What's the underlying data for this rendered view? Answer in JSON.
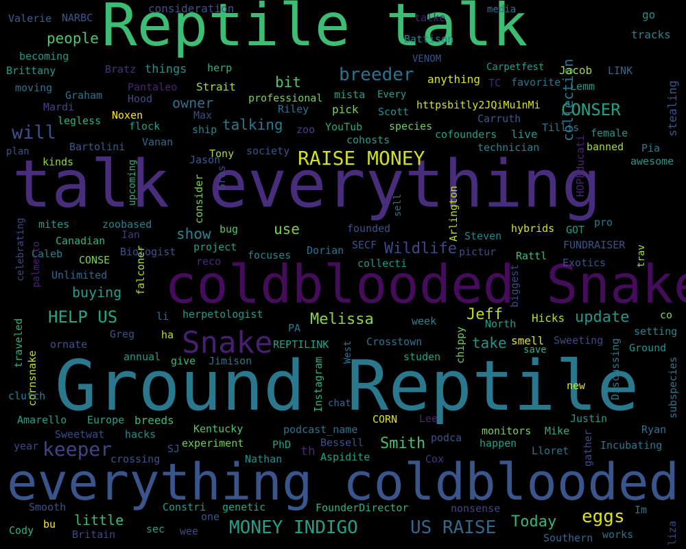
{
  "background": "#000000",
  "words": [
    {
      "text": "Reptile talk",
      "color": "#3dbc74"
    },
    {
      "text": "talk everything",
      "color": "#472d7b"
    },
    {
      "text": "coldblooded Snake",
      "color": "#440c5a"
    },
    {
      "text": "Ground Reptile",
      "color": "#29788e"
    },
    {
      "text": "everything coldblooded",
      "color": "#3a548c"
    },
    {
      "text": "Snake",
      "color": "#481f70"
    },
    {
      "text": "RAISE MONEY",
      "color": "#d0e11c"
    },
    {
      "text": "breeder",
      "color": "#2c728e"
    },
    {
      "text": "CONSER",
      "color": "#20a486"
    },
    {
      "text": "HELP US",
      "color": "#22a884"
    },
    {
      "text": "Wildlife",
      "color": "#3e4989"
    },
    {
      "text": "update",
      "color": "#1f988b"
    },
    {
      "text": "Melissa",
      "color": "#8bd646"
    },
    {
      "text": "Jeff",
      "color": "#bddf26"
    },
    {
      "text": "keeper",
      "color": "#414487"
    },
    {
      "text": "Smith",
      "color": "#4ac16d"
    },
    {
      "text": "eggs",
      "color": "#dde318"
    },
    {
      "text": "Today",
      "color": "#35b779"
    },
    {
      "text": "MONEY INDIGO",
      "color": "#1fa187"
    },
    {
      "text": "US RAISE",
      "color": "#31688e"
    },
    {
      "text": "little",
      "color": "#3dbc74"
    },
    {
      "text": "people",
      "color": "#54c568"
    },
    {
      "text": "will",
      "color": "#3b528b"
    },
    {
      "text": "talking",
      "color": "#2a788e"
    },
    {
      "text": "owner",
      "color": "#2d708e"
    },
    {
      "text": "bit",
      "color": "#54c568"
    },
    {
      "text": "show",
      "color": "#25848e"
    },
    {
      "text": "use",
      "color": "#7ad151"
    },
    {
      "text": "buying",
      "color": "#1f9e89"
    },
    {
      "text": "take",
      "color": "#1f968b"
    },
    {
      "text": "collection",
      "color": "#2a788e"
    },
    {
      "text": "stealing",
      "color": "#3b528b"
    },
    {
      "text": "Valerie",
      "color": "#35608d"
    },
    {
      "text": "NARBC",
      "color": "#38588c"
    },
    {
      "text": "consideration",
      "color": "#3b528b"
    },
    {
      "text": "talke",
      "color": "#482374"
    },
    {
      "text": "media",
      "color": "#2c728e"
    },
    {
      "text": "go",
      "color": "#21918c"
    },
    {
      "text": "tracks",
      "color": "#25848e"
    },
    {
      "text": "becoming",
      "color": "#1e9b8a"
    },
    {
      "text": "Battison",
      "color": "#26828e"
    },
    {
      "text": "VENOM",
      "color": "#3b528b"
    },
    {
      "text": "Brittany",
      "color": "#1f9e89"
    },
    {
      "text": "Bratz",
      "color": "#46337f"
    },
    {
      "text": "things",
      "color": "#21918c"
    },
    {
      "text": "herp",
      "color": "#2db27d"
    },
    {
      "text": "Carpetfest",
      "color": "#1f9e89"
    },
    {
      "text": "Jacob",
      "color": "#9fda3a"
    },
    {
      "text": "LINK",
      "color": "#31688e"
    },
    {
      "text": "moving",
      "color": "#2c728e"
    },
    {
      "text": "Pantaleo",
      "color": "#482475"
    },
    {
      "text": "Strait",
      "color": "#a5db36"
    },
    {
      "text": "anything",
      "color": "#dae319"
    },
    {
      "text": "TC",
      "color": "#482878"
    },
    {
      "text": "favorite",
      "color": "#2a788e"
    },
    {
      "text": "Lemm",
      "color": "#1f9a8a"
    },
    {
      "text": "Graham",
      "color": "#2c728e"
    },
    {
      "text": "Hood",
      "color": "#3e4989"
    },
    {
      "text": "professional",
      "color": "#7ad151"
    },
    {
      "text": "mista",
      "color": "#1fa187"
    },
    {
      "text": "Every",
      "color": "#20a386"
    },
    {
      "text": "Mardi",
      "color": "#414487"
    },
    {
      "text": "Riley",
      "color": "#2c728e"
    },
    {
      "text": "pick",
      "color": "#7ad151"
    },
    {
      "text": "Scott",
      "color": "#21918c"
    },
    {
      "text": "httpsbitly2JQiMu1nMi",
      "color": "#d8e219"
    },
    {
      "text": "Noxen",
      "color": "#fde725"
    },
    {
      "text": "Max",
      "color": "#3e4a89"
    },
    {
      "text": "legless",
      "color": "#2ab07f"
    },
    {
      "text": "flock",
      "color": "#1f9e89"
    },
    {
      "text": "ship",
      "color": "#25858e"
    },
    {
      "text": "zoo",
      "color": "#424086"
    },
    {
      "text": "YouTub",
      "color": "#22a884"
    },
    {
      "text": "species",
      "color": "#6ece58"
    },
    {
      "text": "Carruth",
      "color": "#38598c"
    },
    {
      "text": "cofounders",
      "color": "#1fa187"
    },
    {
      "text": "live",
      "color": "#1f9a8a"
    },
    {
      "text": "Tillis",
      "color": "#2a788e"
    },
    {
      "text": "female",
      "color": "#1f968b"
    },
    {
      "text": "plan",
      "color": "#3b528b"
    },
    {
      "text": "Bartolini",
      "color": "#38598c"
    },
    {
      "text": "Vanan",
      "color": "#31688e"
    },
    {
      "text": "Tony",
      "color": "#a8db34"
    },
    {
      "text": "society",
      "color": "#3b528b"
    },
    {
      "text": "cohosts",
      "color": "#1f9e89"
    },
    {
      "text": "technician",
      "color": "#25848e"
    },
    {
      "text": "banned",
      "color": "#a5db36"
    },
    {
      "text": "Pia",
      "color": "#287c8e"
    },
    {
      "text": "kinds",
      "color": "#8bd646"
    },
    {
      "text": "Jason",
      "color": "#38588c"
    },
    {
      "text": "awesome",
      "color": "#1f968b"
    },
    {
      "text": "upcoming",
      "color": "#2db27d"
    },
    {
      "text": "consider",
      "color": "#7ad151"
    },
    {
      "text": "Gras",
      "color": "#414487"
    },
    {
      "text": "sell",
      "color": "#2c728e"
    },
    {
      "text": "Arlington",
      "color": "#bddf26"
    },
    {
      "text": "HOPEducati",
      "color": "#482475"
    },
    {
      "text": "mites",
      "color": "#1f9e89"
    },
    {
      "text": "zoobased",
      "color": "#25848e"
    },
    {
      "text": "Ian",
      "color": "#453581"
    },
    {
      "text": "bug",
      "color": "#52c569"
    },
    {
      "text": "founded",
      "color": "#3b528b"
    },
    {
      "text": "hybrids",
      "color": "#d8e219"
    },
    {
      "text": "GOT",
      "color": "#1e9b8a"
    },
    {
      "text": "pro",
      "color": "#2a788e"
    },
    {
      "text": "Canadian",
      "color": "#2db27d"
    },
    {
      "text": "project",
      "color": "#1f9e89"
    },
    {
      "text": "Steven",
      "color": "#25848e"
    },
    {
      "text": "celebrating",
      "color": "#3e4989"
    },
    {
      "text": "Caleb",
      "color": "#26828e"
    },
    {
      "text": "CONSE",
      "color": "#7ad151"
    },
    {
      "text": "Biologist",
      "color": "#3b528b"
    },
    {
      "text": "reco",
      "color": "#482878"
    },
    {
      "text": "focuses",
      "color": "#25848e"
    },
    {
      "text": "Dorian",
      "color": "#2c728e"
    },
    {
      "text": "SECF",
      "color": "#3b528b"
    },
    {
      "text": "pictur",
      "color": "#3e4989"
    },
    {
      "text": "FUNDRAISER",
      "color": "#3b528b"
    },
    {
      "text": "trav",
      "color": "#a5db36"
    },
    {
      "text": "palmetto",
      "color": "#482475"
    },
    {
      "text": "Unlimited",
      "color": "#31688e"
    },
    {
      "text": "collecti",
      "color": "#1f968b"
    },
    {
      "text": "Rattl",
      "color": "#3dbc74"
    },
    {
      "text": "Exotics",
      "color": "#3b528b"
    },
    {
      "text": "falconer",
      "color": "#b0dd2f"
    },
    {
      "text": "biggest",
      "color": "#404688"
    },
    {
      "text": "li",
      "color": "#2c728e"
    },
    {
      "text": "herpetologist",
      "color": "#1f9e89"
    },
    {
      "text": "co",
      "color": "#7ad151"
    },
    {
      "text": "traveled",
      "color": "#2db27d"
    },
    {
      "text": "Greg",
      "color": "#3b528b"
    },
    {
      "text": "PA",
      "color": "#2a788e"
    },
    {
      "text": "week",
      "color": "#25848e"
    },
    {
      "text": "North",
      "color": "#1f9e89"
    },
    {
      "text": "Hicks",
      "color": "#b0dd2f"
    },
    {
      "text": "setting",
      "color": "#25848e"
    },
    {
      "text": "ornate",
      "color": "#3b528b"
    },
    {
      "text": "ha",
      "color": "#bddf26"
    },
    {
      "text": "REPTILINK",
      "color": "#1fa187"
    },
    {
      "text": "West",
      "color": "#2c728e"
    },
    {
      "text": "Crosstown",
      "color": "#2c728e"
    },
    {
      "text": "chippy",
      "color": "#6ece58"
    },
    {
      "text": "smell",
      "color": "#dde318"
    },
    {
      "text": "Sweeting",
      "color": "#3e4989"
    },
    {
      "text": "Discussing",
      "color": "#2a788e"
    },
    {
      "text": "Ground",
      "color": "#1f968b"
    },
    {
      "text": "annual",
      "color": "#1f9e89"
    },
    {
      "text": "give",
      "color": "#35b779"
    },
    {
      "text": "Jimison",
      "color": "#2c728e"
    },
    {
      "text": "studen",
      "color": "#1fa187"
    },
    {
      "text": "save",
      "color": "#2db27d"
    },
    {
      "text": "cornsnake",
      "color": "#bddf26"
    },
    {
      "text": "Instagram",
      "color": "#2db27d"
    },
    {
      "text": "new",
      "color": "#dae319"
    },
    {
      "text": "clutch",
      "color": "#25848e"
    },
    {
      "text": "chat",
      "color": "#31688e"
    },
    {
      "text": "subspecies",
      "color": "#2a788e"
    },
    {
      "text": "Amarello",
      "color": "#1fa187"
    },
    {
      "text": "Europe",
      "color": "#20a486"
    },
    {
      "text": "breeds",
      "color": "#3dbc74"
    },
    {
      "text": "CORN",
      "color": "#dde318"
    },
    {
      "text": "Lee",
      "color": "#482475"
    },
    {
      "text": "Justin",
      "color": "#1f9e89"
    },
    {
      "text": "Sweetwat",
      "color": "#3e4989"
    },
    {
      "text": "hacks",
      "color": "#21918c"
    },
    {
      "text": "Kentucky",
      "color": "#52c569"
    },
    {
      "text": "podcast_name",
      "color": "#2c728e"
    },
    {
      "text": "monitors",
      "color": "#7ad151"
    },
    {
      "text": "Mike",
      "color": "#2ab07f"
    },
    {
      "text": "Ryan",
      "color": "#2c728e"
    },
    {
      "text": "gather",
      "color": "#3e4989"
    },
    {
      "text": "Bessell",
      "color": "#3b528b"
    },
    {
      "text": "podca",
      "color": "#3b528b"
    },
    {
      "text": "year",
      "color": "#3e4989"
    },
    {
      "text": "crossing",
      "color": "#3b528b"
    },
    {
      "text": "SJ",
      "color": "#3b528b"
    },
    {
      "text": "experiment",
      "color": "#6ece58"
    },
    {
      "text": "PhD",
      "color": "#1f9e89"
    },
    {
      "text": "happen",
      "color": "#20a386"
    },
    {
      "text": "Lloret",
      "color": "#2c728e"
    },
    {
      "text": "Incubating",
      "color": "#2a788e"
    },
    {
      "text": "th",
      "color": "#482475"
    },
    {
      "text": "Nathan",
      "color": "#21918c"
    },
    {
      "text": "Aspidite",
      "color": "#1fa187"
    },
    {
      "text": "Cox",
      "color": "#453581"
    },
    {
      "text": "Smooth",
      "color": "#3b528b"
    },
    {
      "text": "Constri",
      "color": "#1f9e89"
    },
    {
      "text": "genetic",
      "color": "#22a884"
    },
    {
      "text": "FounderDirector",
      "color": "#2db27d"
    },
    {
      "text": "nonsense",
      "color": "#414487"
    },
    {
      "text": "Im",
      "color": "#2c728e"
    },
    {
      "text": "liza",
      "color": "#3e4989"
    },
    {
      "text": "Cody",
      "color": "#2db27d"
    },
    {
      "text": "bu",
      "color": "#fde725"
    },
    {
      "text": "Britain",
      "color": "#414487"
    },
    {
      "text": "sec",
      "color": "#1fa187"
    },
    {
      "text": "wee",
      "color": "#3e4989"
    },
    {
      "text": "one",
      "color": "#3b528b"
    },
    {
      "text": "Southern",
      "color": "#31688e"
    },
    {
      "text": "works",
      "color": "#2c728e"
    }
  ]
}
